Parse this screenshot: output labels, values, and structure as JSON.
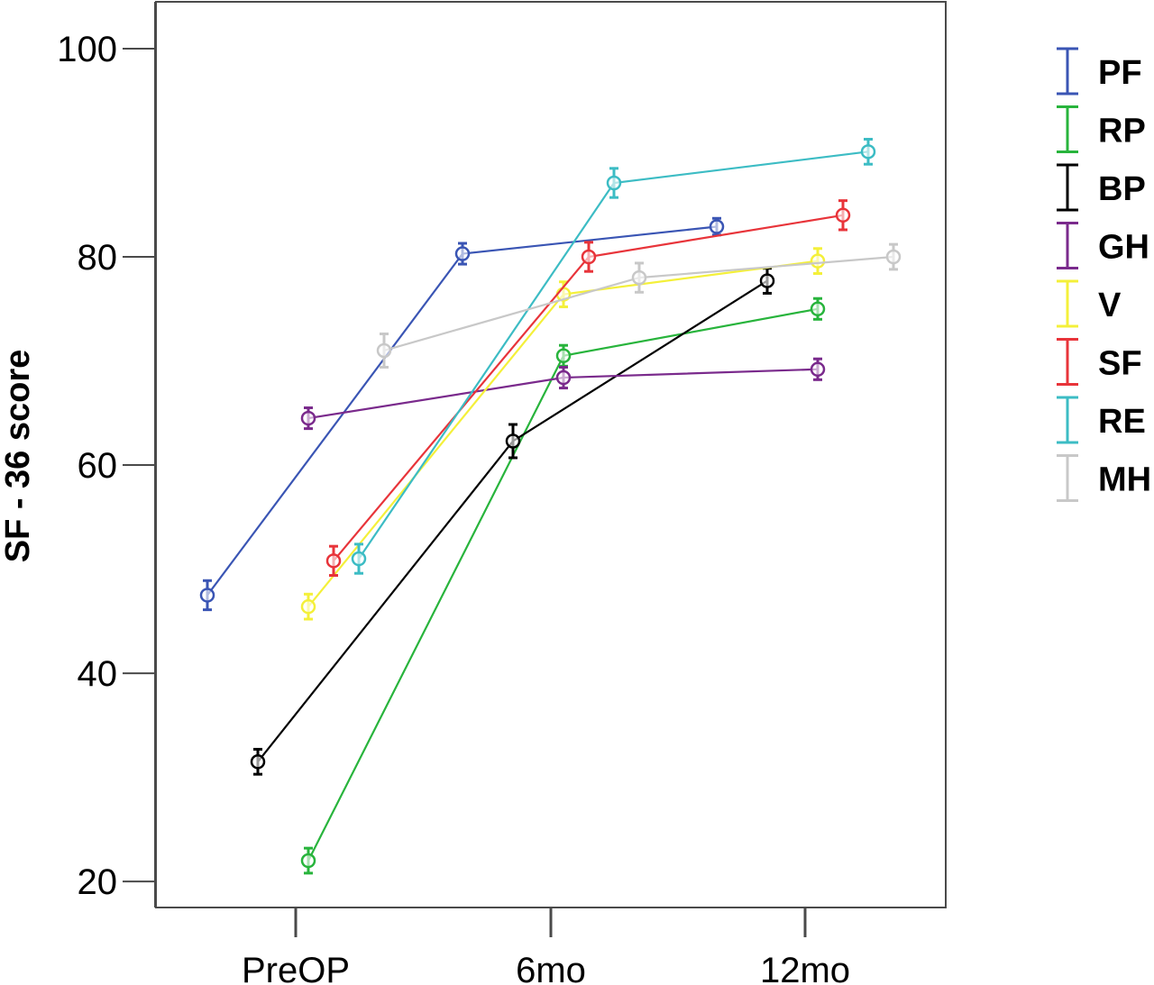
{
  "chart_data": {
    "type": "line",
    "title": "",
    "xlabel": "",
    "ylabel": "SF - 36 score",
    "categories": [
      "PreOP",
      "6mo",
      "12mo"
    ],
    "y_ticks": [
      "20",
      "40",
      "60",
      "80",
      "100"
    ],
    "ylim": [
      17.5,
      104.5
    ],
    "grid": false,
    "legend_position": "right",
    "error_bars": true,
    "series": [
      {
        "name": "PF",
        "color": "#3a55b4",
        "values": [
          47.5,
          80.3,
          82.9
        ],
        "errors": [
          1.4,
          1.0,
          0.8
        ]
      },
      {
        "name": "RP",
        "color": "#28b43c",
        "values": [
          22.0,
          70.5,
          75.0
        ],
        "errors": [
          1.2,
          1.0,
          1.0
        ]
      },
      {
        "name": "BP",
        "color": "#000000",
        "values": [
          31.5,
          62.3,
          77.7
        ],
        "errors": [
          1.2,
          1.6,
          1.2
        ]
      },
      {
        "name": "GH",
        "color": "#7a2a8c",
        "values": [
          64.5,
          68.4,
          69.2
        ],
        "errors": [
          1.0,
          1.0,
          1.0
        ]
      },
      {
        "name": "V",
        "color": "#f4f03a",
        "values": [
          46.4,
          76.4,
          79.6
        ],
        "errors": [
          1.2,
          1.2,
          1.2
        ]
      },
      {
        "name": "SF",
        "color": "#e8343a",
        "values": [
          50.8,
          80.0,
          84.0
        ],
        "errors": [
          1.4,
          1.4,
          1.4
        ]
      },
      {
        "name": "RE",
        "color": "#3cbcc4",
        "values": [
          51.0,
          87.1,
          90.1
        ],
        "errors": [
          1.4,
          1.4,
          1.2
        ]
      },
      {
        "name": "MH",
        "color": "#c8c8c8",
        "values": [
          71.0,
          78.0,
          80.0
        ],
        "errors": [
          1.6,
          1.4,
          1.2
        ]
      }
    ]
  }
}
